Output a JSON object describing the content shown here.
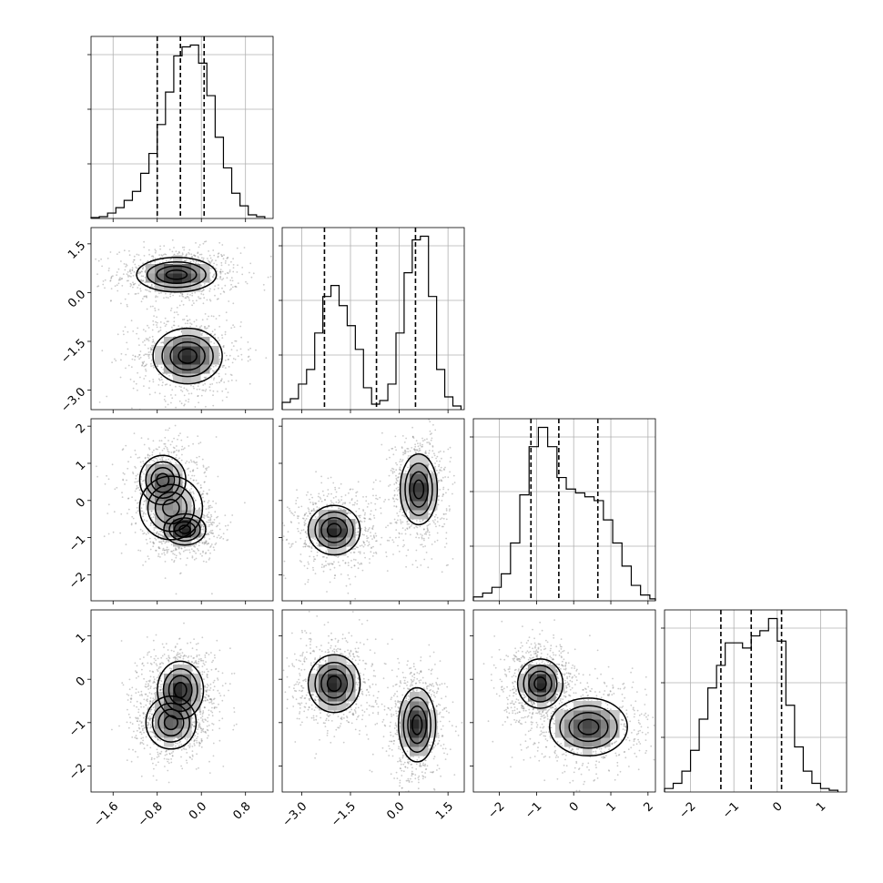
{
  "chart_data": {
    "type": "corner",
    "dimensions": 4,
    "axes": [
      {
        "range": [
          -2.0,
          1.3
        ],
        "ticks": [
          -1.6,
          -0.8,
          0.0,
          0.8
        ],
        "tick_labels": [
          "−1.6",
          "−0.8",
          "0.0",
          "0.8"
        ],
        "quantiles": [
          -0.8,
          -0.38,
          0.05
        ]
      },
      {
        "range": [
          -3.6,
          2.0
        ],
        "ticks": [
          -3.0,
          -1.5,
          0.0,
          1.5
        ],
        "tick_labels": [
          "−3.0",
          "−1.5",
          "0.0",
          "1.5"
        ],
        "quantiles": [
          -2.3,
          -0.7,
          0.5
        ]
      },
      {
        "range": [
          -2.7,
          2.2
        ],
        "ticks": [
          -2,
          -1,
          0,
          1,
          2
        ],
        "tick_labels": [
          "−2",
          "−1",
          "0",
          "1",
          "2"
        ],
        "quantiles": [
          -1.15,
          -0.4,
          0.65
        ]
      },
      {
        "range": [
          -2.6,
          1.6
        ],
        "ticks": [
          -2,
          -1,
          0,
          1
        ],
        "tick_labels": [
          "−2",
          "−1",
          "0",
          "1"
        ],
        "quantiles": [
          -1.3,
          -0.6,
          0.1
        ]
      }
    ],
    "histograms": [
      {
        "bin_edges": [
          -2.0,
          -1.85,
          -1.7,
          -1.55,
          -1.4,
          -1.25,
          -1.1,
          -0.95,
          -0.8,
          -0.65,
          -0.5,
          -0.35,
          -0.2,
          -0.05,
          0.1,
          0.25,
          0.4,
          0.55,
          0.7,
          0.85,
          1.0,
          1.15
        ],
        "counts": [
          0.005,
          0.01,
          0.03,
          0.06,
          0.1,
          0.15,
          0.25,
          0.36,
          0.52,
          0.7,
          0.9,
          0.95,
          0.96,
          0.86,
          0.68,
          0.45,
          0.28,
          0.14,
          0.07,
          0.02,
          0.01
        ]
      },
      {
        "bin_edges": [
          -3.6,
          -3.35,
          -3.1,
          -2.85,
          -2.6,
          -2.35,
          -2.1,
          -1.85,
          -1.6,
          -1.35,
          -1.1,
          -0.85,
          -0.6,
          -0.35,
          -0.1,
          0.15,
          0.4,
          0.65,
          0.9,
          1.15,
          1.4,
          1.65,
          1.9
        ],
        "counts": [
          0.04,
          0.06,
          0.14,
          0.22,
          0.42,
          0.62,
          0.68,
          0.57,
          0.46,
          0.33,
          0.12,
          0.03,
          0.05,
          0.14,
          0.42,
          0.75,
          0.93,
          0.95,
          0.62,
          0.22,
          0.07,
          0.02
        ]
      },
      {
        "bin_edges": [
          -2.7,
          -2.45,
          -2.2,
          -1.95,
          -1.7,
          -1.45,
          -1.2,
          -0.95,
          -0.7,
          -0.45,
          -0.2,
          0.05,
          0.3,
          0.55,
          0.8,
          1.05,
          1.3,
          1.55,
          1.8,
          2.05,
          2.2
        ],
        "counts": [
          0.02,
          0.04,
          0.07,
          0.14,
          0.3,
          0.55,
          0.8,
          0.9,
          0.8,
          0.64,
          0.58,
          0.56,
          0.54,
          0.52,
          0.42,
          0.3,
          0.18,
          0.08,
          0.03,
          0.01
        ]
      },
      {
        "bin_edges": [
          -2.6,
          -2.4,
          -2.2,
          -2.0,
          -1.8,
          -1.6,
          -1.4,
          -1.2,
          -1.0,
          -0.8,
          -0.6,
          -0.4,
          -0.2,
          0.0,
          0.2,
          0.4,
          0.6,
          0.8,
          1.0,
          1.2,
          1.4
        ],
        "counts": [
          0.02,
          0.05,
          0.12,
          0.24,
          0.42,
          0.6,
          0.73,
          0.86,
          0.86,
          0.83,
          0.9,
          0.93,
          1.0,
          0.87,
          0.5,
          0.26,
          0.12,
          0.05,
          0.02,
          0.01
        ]
      }
    ],
    "blobs": [
      {
        "pair": [
          1,
          0
        ],
        "center": [
          -0.45,
          0.55
        ],
        "sx": 0.38,
        "sy": 0.28,
        "rot": 0,
        "w": 1.0
      },
      {
        "pair": [
          1,
          0
        ],
        "center": [
          -0.25,
          -1.95
        ],
        "sx": 0.33,
        "sy": 0.45,
        "rot": 0,
        "w": 1.0
      },
      {
        "pair": [
          2,
          0
        ],
        "center": [
          -0.3,
          -0.78
        ],
        "sx": 0.2,
        "sy": 0.22,
        "rot": 0,
        "w": 1.0
      },
      {
        "pair": [
          2,
          0
        ],
        "center": [
          -0.7,
          0.55
        ],
        "sx": 0.22,
        "sy": 0.35,
        "rot": 0,
        "w": 0.7
      },
      {
        "pair": [
          2,
          0
        ],
        "center": [
          -0.55,
          -0.2
        ],
        "sx": 0.3,
        "sy": 0.45,
        "rot": 0,
        "w": 0.5
      },
      {
        "pair": [
          2,
          1
        ],
        "center": [
          -2.0,
          -0.8
        ],
        "sx": 0.42,
        "sy": 0.35,
        "rot": 0,
        "w": 1.0
      },
      {
        "pair": [
          2,
          1
        ],
        "center": [
          0.6,
          0.3
        ],
        "sx": 0.3,
        "sy": 0.5,
        "rot": 0,
        "w": 1.0
      },
      {
        "pair": [
          3,
          0
        ],
        "center": [
          -0.38,
          -0.25
        ],
        "sx": 0.22,
        "sy": 0.35,
        "rot": 0,
        "w": 1.0
      },
      {
        "pair": [
          3,
          0
        ],
        "center": [
          -0.55,
          -1.0
        ],
        "sx": 0.24,
        "sy": 0.32,
        "rot": 0,
        "w": 0.7
      },
      {
        "pair": [
          3,
          1
        ],
        "center": [
          -2.0,
          -0.1
        ],
        "sx": 0.42,
        "sy": 0.35,
        "rot": 0,
        "w": 1.0
      },
      {
        "pair": [
          3,
          1
        ],
        "center": [
          0.55,
          -1.05
        ],
        "sx": 0.3,
        "sy": 0.45,
        "rot": 0,
        "w": 1.0
      },
      {
        "pair": [
          3,
          2
        ],
        "center": [
          -0.9,
          -0.1
        ],
        "sx": 0.32,
        "sy": 0.3,
        "rot": 0,
        "w": 1.0
      },
      {
        "pair": [
          3,
          2
        ],
        "center": [
          0.4,
          -1.1
        ],
        "sx": 0.55,
        "sy": 0.35,
        "rot": 0,
        "w": 0.85
      }
    ]
  }
}
